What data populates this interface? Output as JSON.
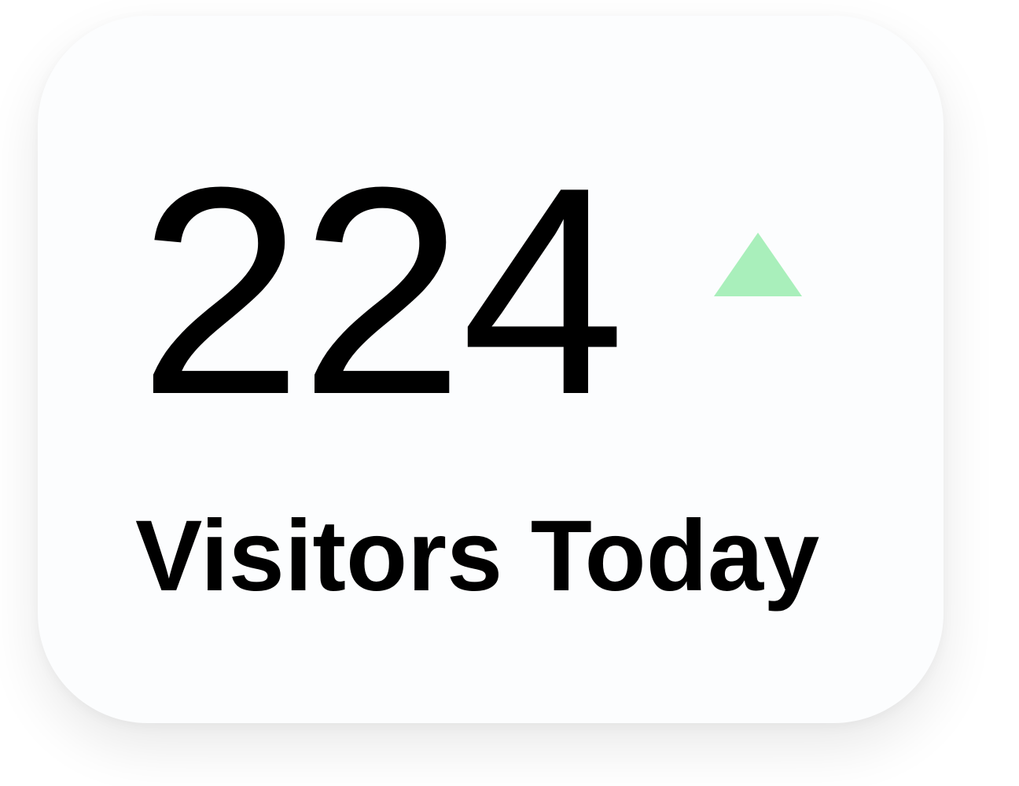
{
  "widget": {
    "value": "224",
    "label": "Visitors Today",
    "trend": {
      "direction": "up",
      "icon": "triangle-up-icon",
      "color": "#a9efbb"
    },
    "card_background": "#fcfdfe",
    "text_color": "#000000"
  }
}
